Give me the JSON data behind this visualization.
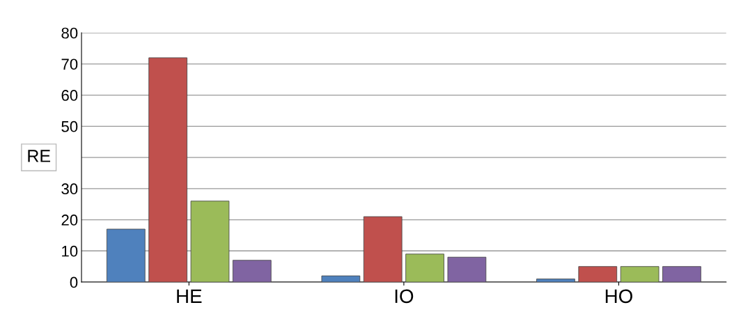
{
  "chart_data": {
    "type": "bar",
    "categories": [
      "HE",
      "IO",
      "HO"
    ],
    "series": [
      {
        "color": "#4f81bd",
        "values": [
          17,
          2,
          1
        ]
      },
      {
        "color": "#c0504d",
        "values": [
          72,
          21,
          5
        ]
      },
      {
        "color": "#9bbb59",
        "values": [
          26,
          9,
          5
        ]
      },
      {
        "color": "#8064a2",
        "values": [
          7,
          8,
          5
        ]
      }
    ],
    "ylim": [
      0,
      80
    ],
    "yticks": [
      0,
      10,
      20,
      30,
      {
        "value": 40,
        "label": null
      },
      50,
      60,
      70,
      80
    ],
    "grid": "y",
    "annotations": [
      "RE"
    ]
  }
}
